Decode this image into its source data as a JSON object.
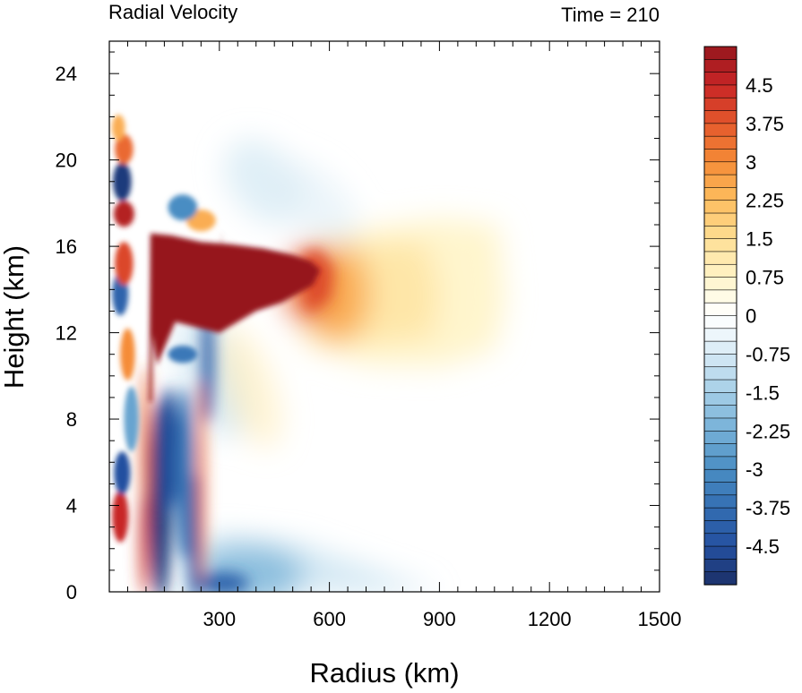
{
  "chart_data": {
    "type": "heatmap",
    "title_left": "Radial Velocity",
    "title_right": "Time = 210",
    "xlabel": "Radius (km)",
    "ylabel": "Height (km)",
    "xlim": [
      0,
      1500
    ],
    "ylim": [
      0,
      25.5
    ],
    "x_ticks": [
      300,
      600,
      900,
      1200,
      1500
    ],
    "y_ticks": [
      0,
      4,
      8,
      12,
      16,
      20,
      24
    ],
    "colorbar": {
      "min": -5.25,
      "max": 5.25,
      "levels_step": 0.25,
      "tick_labels": [
        "4.5",
        "3.75",
        "3",
        "2.25",
        "1.5",
        "0.75",
        "0",
        "-0.75",
        "-1.5",
        "-2.25",
        "-3",
        "-3.75",
        "-4.5"
      ],
      "tick_values": [
        4.5,
        3.75,
        3,
        2.25,
        1.5,
        0.75,
        0,
        -0.75,
        -1.5,
        -2.25,
        -3,
        -3.75,
        -4.5
      ]
    },
    "features": [
      {
        "name": "upper-level outflow jet",
        "r": [
          110,
          560
        ],
        "z": [
          12,
          16.6
        ],
        "value": 5.25
      },
      {
        "name": "outflow plume",
        "r": [
          500,
          1100
        ],
        "z": [
          10.5,
          17
        ],
        "value": 1.5
      },
      {
        "name": "low-level inflow",
        "r": [
          60,
          420
        ],
        "z": [
          0,
          9
        ],
        "value": -5
      },
      {
        "name": "boundary-layer inflow",
        "r": [
          200,
          900
        ],
        "z": [
          0,
          2
        ],
        "value": -1.5
      }
    ]
  }
}
